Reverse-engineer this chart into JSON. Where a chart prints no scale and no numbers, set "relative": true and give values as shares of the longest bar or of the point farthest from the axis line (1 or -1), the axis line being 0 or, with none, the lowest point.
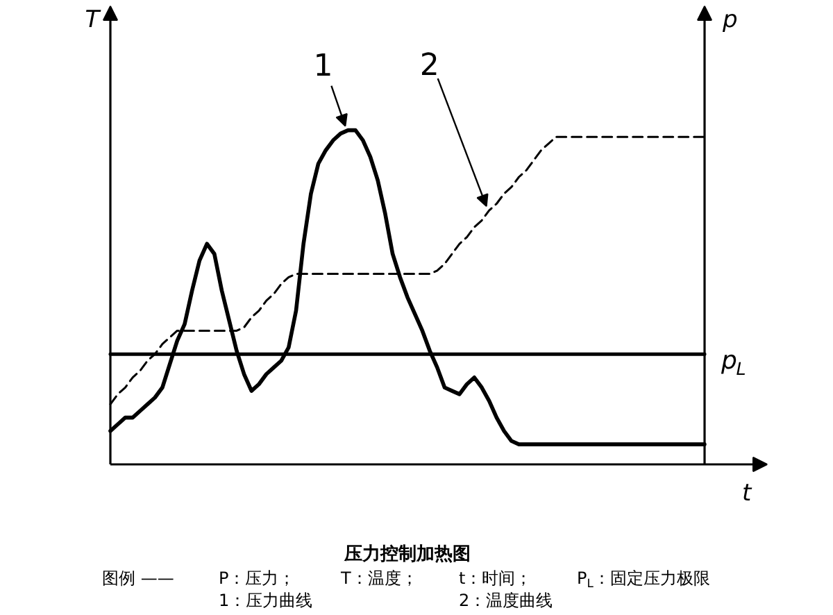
{
  "chart_data": {
    "type": "line",
    "relative": true,
    "title": "压力控制加热图",
    "xlabel": "t",
    "ylabel": "T",
    "y2label": "p",
    "categories": [
      null,
      null,
      null,
      null,
      null,
      null,
      null,
      null,
      null,
      null,
      null,
      null,
      null,
      null,
      null,
      null,
      null,
      null,
      null,
      null,
      null,
      null,
      null,
      null,
      null,
      null,
      null,
      null,
      null,
      null,
      null,
      null,
      null,
      null,
      null,
      null,
      null,
      null,
      null,
      null,
      null,
      null,
      null,
      null,
      null,
      null,
      null,
      null,
      null,
      null,
      null,
      null,
      null,
      null,
      null,
      null,
      null,
      null,
      null,
      null,
      null,
      null,
      null,
      null,
      null,
      null,
      null,
      null,
      null,
      null,
      null,
      null,
      null,
      null,
      null,
      null,
      null,
      null,
      null,
      null,
      null
    ],
    "series": [
      {
        "name": "1",
        "color": "#000000",
        "line_style": "solid",
        "values": [
          0.1,
          0.12,
          0.14,
          0.14,
          0.16,
          0.18,
          0.2,
          0.23,
          0.3,
          0.37,
          0.42,
          0.52,
          0.61,
          0.66,
          0.63,
          0.52,
          0.43,
          0.34,
          0.27,
          0.22,
          0.24,
          0.27,
          0.29,
          0.31,
          0.35,
          0.46,
          0.66,
          0.81,
          0.9,
          0.94,
          0.97,
          0.99,
          1.0,
          1.0,
          0.97,
          0.92,
          0.85,
          0.75,
          0.63,
          0.56,
          0.5,
          0.45,
          0.4,
          0.34,
          0.29,
          0.23,
          0.22,
          0.21,
          0.24,
          0.26,
          0.23,
          0.19,
          0.14,
          0.1,
          0.07,
          0.06,
          0.06,
          0.06,
          0.06,
          0.06,
          0.06,
          0.06,
          0.06,
          0.06,
          0.06,
          0.06,
          0.06,
          0.06,
          0.06,
          0.06,
          0.06,
          0.06,
          0.06,
          0.06,
          0.06,
          0.06,
          0.06,
          0.06,
          0.06,
          0.06,
          0.06
        ]
      },
      {
        "name": "2",
        "color": "#000000",
        "line_style": "dashed",
        "values": [
          0.18,
          0.21,
          0.23,
          0.26,
          0.28,
          0.31,
          0.33,
          0.36,
          0.38,
          0.4,
          0.4,
          0.4,
          0.4,
          0.4,
          0.4,
          0.4,
          0.4,
          0.4,
          0.41,
          0.44,
          0.46,
          0.49,
          0.51,
          0.54,
          0.56,
          0.57,
          0.57,
          0.57,
          0.57,
          0.57,
          0.57,
          0.57,
          0.57,
          0.57,
          0.57,
          0.57,
          0.57,
          0.57,
          0.57,
          0.57,
          0.57,
          0.57,
          0.57,
          0.57,
          0.58,
          0.6,
          0.63,
          0.66,
          0.68,
          0.71,
          0.73,
          0.76,
          0.78,
          0.81,
          0.83,
          0.86,
          0.88,
          0.91,
          0.94,
          0.96,
          0.98,
          0.98,
          0.98,
          0.98,
          0.98,
          0.98,
          0.98,
          0.98,
          0.98,
          0.98,
          0.98,
          0.98,
          0.98,
          0.98,
          0.98,
          0.98,
          0.98,
          0.98,
          0.98,
          0.98,
          0.98
        ]
      },
      {
        "name": "p$_{L}$",
        "color": "#000000",
        "line_style": "solid",
        "values": [
          0.33,
          0.33,
          0.33,
          0.33,
          0.33,
          0.33,
          0.33,
          0.33,
          0.33,
          0.33,
          0.33,
          0.33,
          0.33,
          0.33,
          0.33,
          0.33,
          0.33,
          0.33,
          0.33,
          0.33,
          0.33,
          0.33,
          0.33,
          0.33,
          0.33,
          0.33,
          0.33,
          0.33,
          0.33,
          0.33,
          0.33,
          0.33,
          0.33,
          0.33,
          0.33,
          0.33,
          0.33,
          0.33,
          0.33,
          0.33,
          0.33,
          0.33,
          0.33,
          0.33,
          0.33,
          0.33,
          0.33,
          0.33,
          0.33,
          0.33,
          0.33,
          0.33,
          0.33,
          0.33,
          0.33,
          0.33,
          0.33,
          0.33,
          0.33,
          0.33,
          0.33,
          0.33,
          0.33,
          0.33,
          0.33,
          0.33,
          0.33,
          0.33,
          0.33,
          0.33,
          0.33,
          0.33,
          0.33,
          0.33,
          0.33,
          0.33,
          0.33,
          0.33,
          0.33,
          0.33,
          0.33
        ]
      }
    ],
    "annotations": [
      "图例 ——",
      "P：压力；",
      "T：温度；",
      "t：时间；",
      "P$_{L}$：固定压力极限",
      "1：压力曲线",
      "2：温度曲线"
    ]
  }
}
